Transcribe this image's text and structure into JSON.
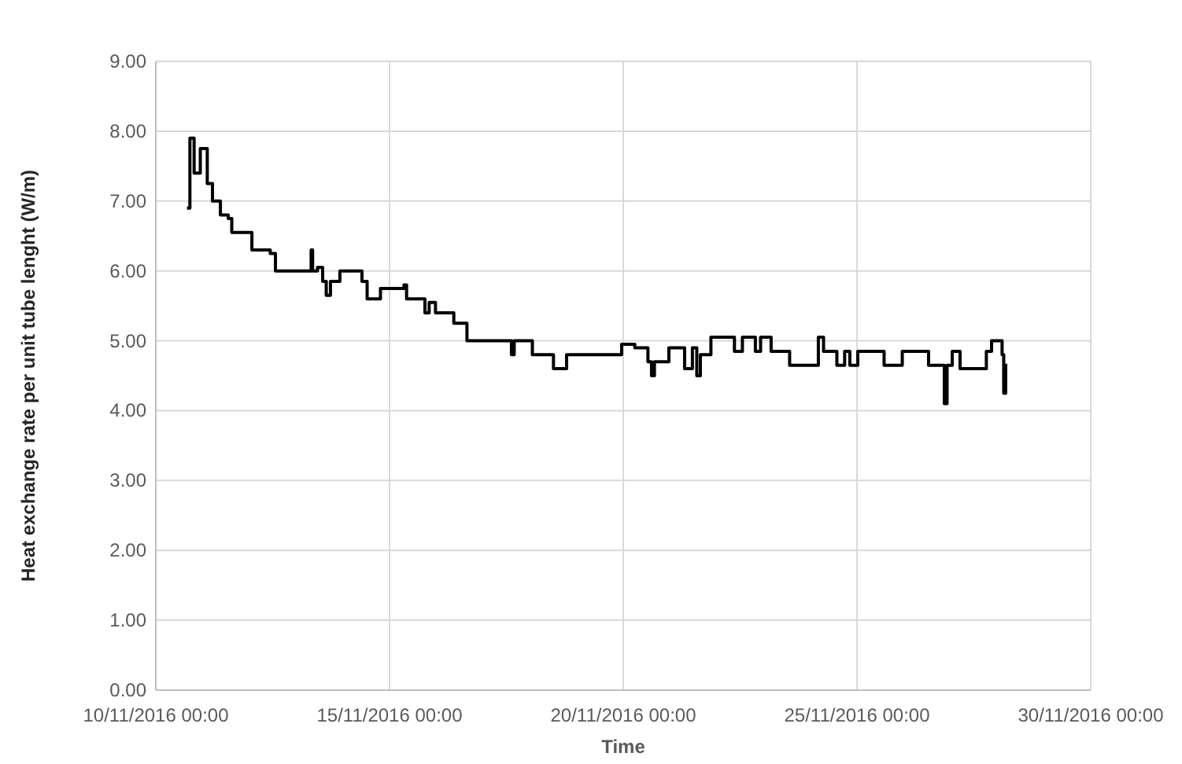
{
  "chart_data": {
    "type": "step",
    "xlabel": "Time",
    "ylabel": "Heat exchange rate per unit tube lenght (W/m)",
    "grid": true,
    "line_style": "solid",
    "color": "#000000",
    "xlim": [
      "2016-11-10T00:00",
      "2016-11-30T00:00"
    ],
    "xticks": [
      {
        "value": "2016-11-10T00:00",
        "label": "10/11/2016 00:00"
      },
      {
        "value": "2016-11-15T00:00",
        "label": "15/11/2016 00:00"
      },
      {
        "value": "2016-11-20T00:00",
        "label": "20/11/2016 00:00"
      },
      {
        "value": "2016-11-25T00:00",
        "label": "25/11/2016 00:00"
      },
      {
        "value": "2016-11-30T00:00",
        "label": "30/11/2016 00:00"
      }
    ],
    "ylim": [
      0,
      9
    ],
    "yticks": [
      {
        "value": 0,
        "label": "0.00"
      },
      {
        "value": 1,
        "label": "1.00"
      },
      {
        "value": 2,
        "label": "2.00"
      },
      {
        "value": 3,
        "label": "3.00"
      },
      {
        "value": 4,
        "label": "4.00"
      },
      {
        "value": 5,
        "label": "5.00"
      },
      {
        "value": 6,
        "label": "6.00"
      },
      {
        "value": 7,
        "label": "7.00"
      },
      {
        "value": 8,
        "label": "8.00"
      },
      {
        "value": 9,
        "label": "9.00"
      }
    ],
    "x": [
      "2016-11-10T16:00",
      "2016-11-10T17:30",
      "2016-11-10T19:40",
      "2016-11-10T22:50",
      "2016-11-11T02:25",
      "2016-11-11T05:05",
      "2016-11-11T09:10",
      "2016-11-11T13:10",
      "2016-11-11T15:00",
      "2016-11-12T01:20",
      "2016-11-12T10:45",
      "2016-11-12T13:25",
      "2016-11-13T07:45",
      "2016-11-13T08:30",
      "2016-11-13T11:00",
      "2016-11-13T13:40",
      "2016-11-13T15:30",
      "2016-11-13T17:40",
      "2016-11-13T22:30",
      "2016-11-14T09:50",
      "2016-11-14T12:30",
      "2016-11-14T19:20",
      "2016-11-15T07:25",
      "2016-11-15T08:45",
      "2016-11-15T18:10",
      "2016-11-15T20:20",
      "2016-11-15T23:35",
      "2016-11-16T09:00",
      "2016-11-16T15:45",
      "2016-11-17T14:35",
      "2016-11-17T16:00",
      "2016-11-18T01:20",
      "2016-11-18T12:10",
      "2016-11-18T18:55",
      "2016-11-19T23:10",
      "2016-11-20T05:55",
      "2016-11-20T12:40",
      "2016-11-20T14:30",
      "2016-11-20T16:00",
      "2016-11-20T23:25",
      "2016-11-21T07:30",
      "2016-11-21T11:30",
      "2016-11-21T13:45",
      "2016-11-21T15:35",
      "2016-11-21T21:00",
      "2016-11-22T09:05",
      "2016-11-22T13:10",
      "2016-11-22T19:50",
      "2016-11-22T22:30",
      "2016-11-23T03:55",
      "2016-11-23T13:25",
      "2016-11-24T04:10",
      "2016-11-24T06:50",
      "2016-11-24T13:40",
      "2016-11-24T17:40",
      "2016-11-24T20:20",
      "2016-11-25T00:25",
      "2016-11-25T13:55",
      "2016-11-25T23:15",
      "2016-11-26T12:45",
      "2016-11-26T20:50",
      "2016-11-26T22:15",
      "2016-11-27T00:55",
      "2016-11-27T04:55",
      "2016-11-27T18:25",
      "2016-11-27T21:05",
      "2016-11-28T02:30",
      "2016-11-28T03:20",
      "2016-11-28T04:20",
      "2016-11-28T05:10"
    ],
    "values": [
      6.9,
      7.9,
      7.4,
      7.75,
      7.25,
      7.0,
      6.8,
      6.75,
      6.55,
      6.3,
      6.25,
      6.0,
      6.3,
      6.0,
      6.05,
      5.85,
      5.65,
      5.85,
      6.0,
      5.85,
      5.6,
      5.75,
      5.8,
      5.6,
      5.4,
      5.55,
      5.4,
      5.25,
      5.0,
      4.8,
      5.0,
      4.8,
      4.6,
      4.8,
      4.95,
      4.9,
      4.7,
      4.5,
      4.7,
      4.9,
      4.6,
      4.9,
      4.5,
      4.8,
      5.05,
      4.85,
      5.05,
      4.85,
      5.05,
      4.85,
      4.65,
      5.05,
      4.85,
      4.65,
      4.85,
      4.65,
      4.85,
      4.65,
      4.85,
      4.65,
      4.1,
      4.65,
      4.85,
      4.6,
      4.85,
      5.0,
      4.8,
      4.25,
      4.65,
      4.65
    ]
  }
}
